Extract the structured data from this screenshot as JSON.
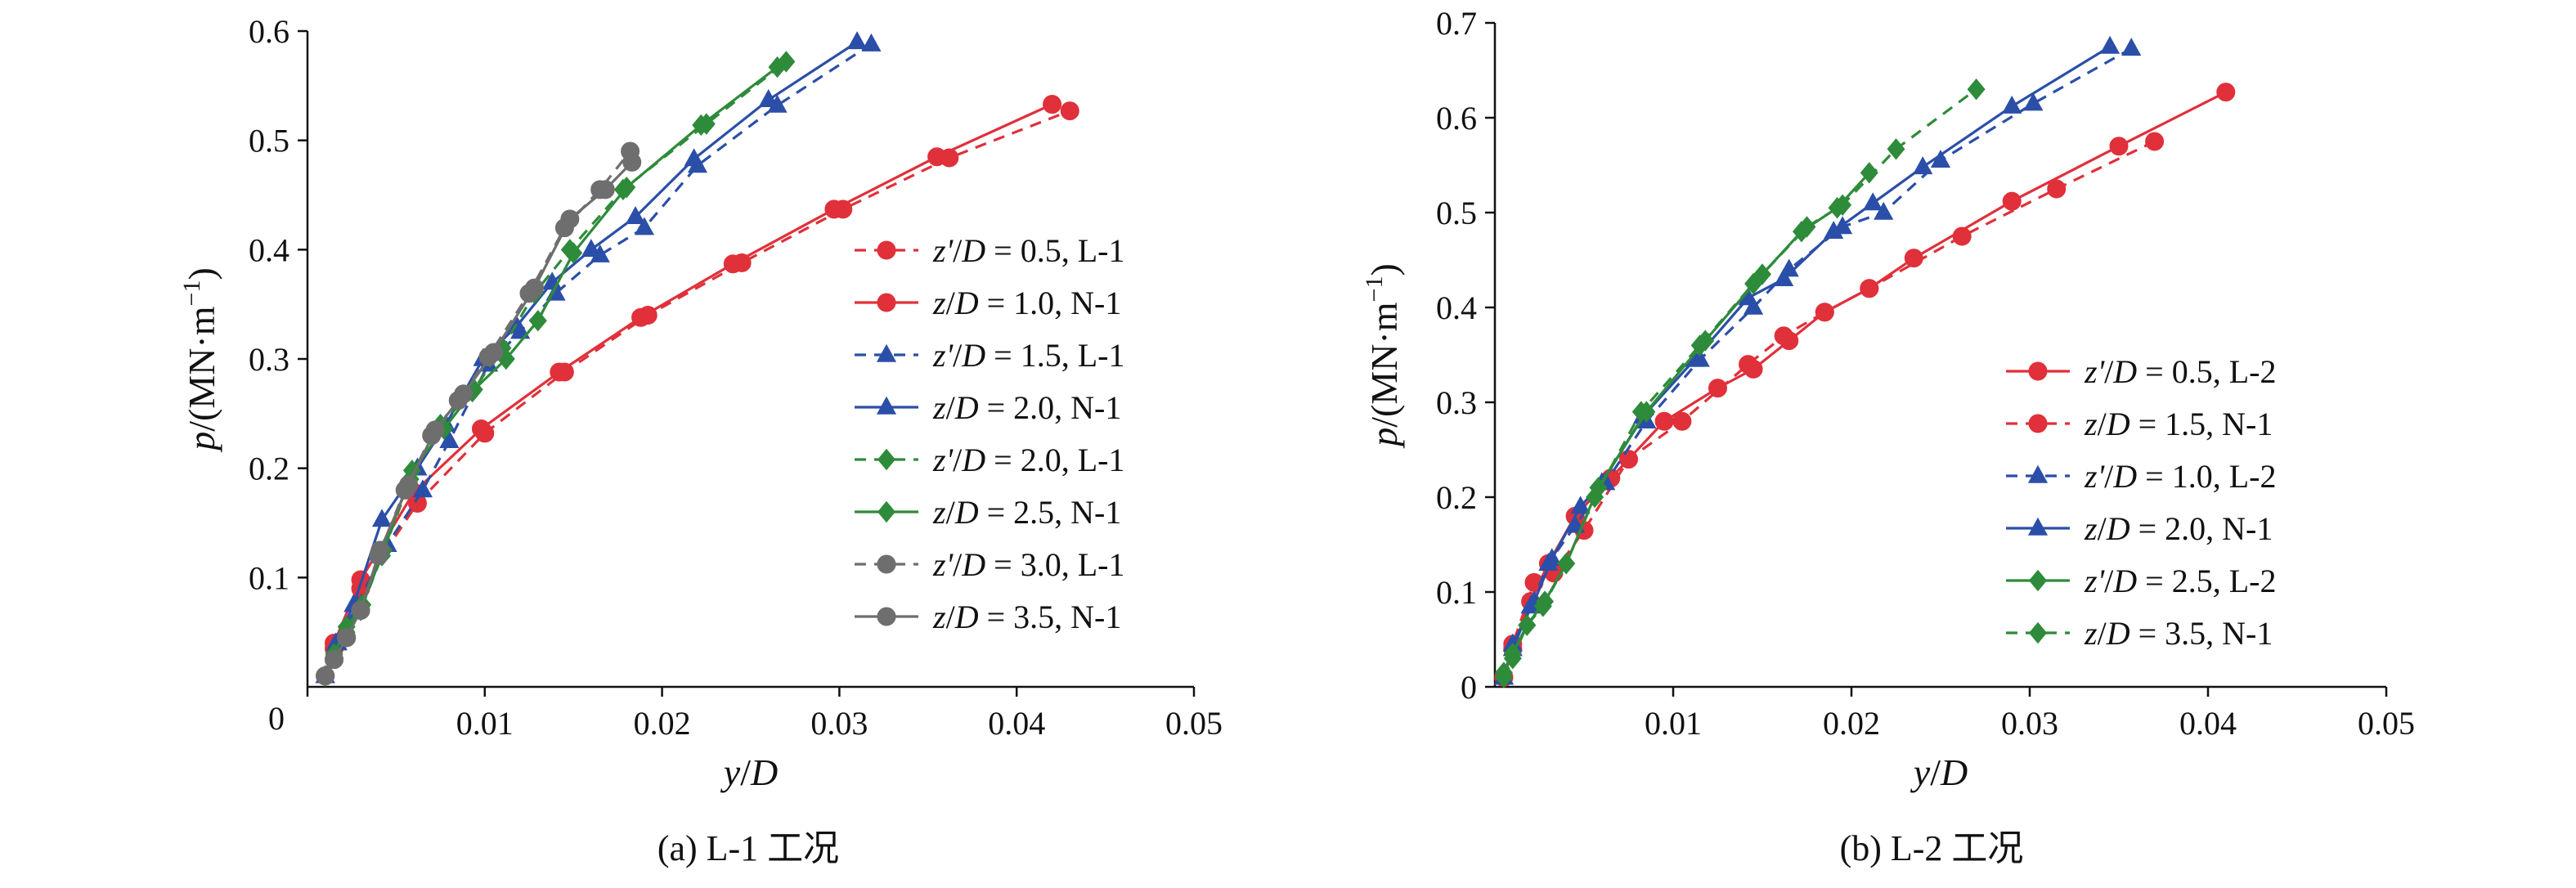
{
  "chart_data": [
    {
      "type": "line",
      "caption": "(a) L-1 工况",
      "xlabel_num": "y",
      "xlabel_den": "D",
      "ylabel_var": "p",
      "ylabel_unit": "(MN·m",
      "ylabel_exp": "−1",
      "ylabel_close": ")",
      "xlim": [
        0,
        0.05
      ],
      "ylim": [
        0,
        0.6
      ],
      "x_ticks": [
        "0",
        "0.01",
        "0.02",
        "0.03",
        "0.04",
        "0.05"
      ],
      "x_tick_values": [
        0,
        0.01,
        0.02,
        0.03,
        0.04,
        0.05
      ],
      "y_ticks": [
        "0.1",
        "0.2",
        "0.3",
        "0.4",
        "0.5",
        "0.6"
      ],
      "y_tick_values": [
        0.1,
        0.2,
        0.3,
        0.4,
        0.5,
        0.6
      ],
      "legend_position": "right",
      "series": [
        {
          "name": "0.5, L-1",
          "var": "z'",
          "color": "#e0303a",
          "dash": true,
          "marker": "circle",
          "x": [
            0.001,
            0.0015,
            0.003,
            0.0062,
            0.01,
            0.0145,
            0.0192,
            0.0245,
            0.0302,
            0.0362,
            0.043
          ],
          "y": [
            0.01,
            0.035,
            0.09,
            0.168,
            0.232,
            0.288,
            0.34,
            0.388,
            0.437,
            0.484,
            0.527
          ]
        },
        {
          "name": "1.0, N-1",
          "var": "z",
          "color": "#e0303a",
          "dash": false,
          "marker": "circle",
          "x": [
            0.001,
            0.0015,
            0.003,
            0.006,
            0.0098,
            0.0142,
            0.0188,
            0.024,
            0.0297,
            0.0355,
            0.042
          ],
          "y": [
            0.01,
            0.04,
            0.098,
            0.178,
            0.236,
            0.288,
            0.338,
            0.387,
            0.437,
            0.485,
            0.533
          ]
        },
        {
          "name": "1.5, L-1",
          "var": "z'",
          "color": "#2b4fa8",
          "dash": true,
          "marker": "triangle",
          "x": [
            0.001,
            0.0017,
            0.0028,
            0.0045,
            0.0065,
            0.008,
            0.0102,
            0.012,
            0.014,
            0.0165,
            0.019,
            0.022,
            0.0265,
            0.0318
          ],
          "y": [
            0.01,
            0.04,
            0.075,
            0.13,
            0.18,
            0.225,
            0.295,
            0.325,
            0.36,
            0.395,
            0.42,
            0.477,
            0.532,
            0.588
          ]
        },
        {
          "name": "2.0, N-1",
          "var": "z",
          "color": "#2b4fa8",
          "dash": false,
          "marker": "triangle",
          "x": [
            0.001,
            0.0016,
            0.0026,
            0.0042,
            0.0062,
            0.0078,
            0.0099,
            0.0118,
            0.0138,
            0.016,
            0.0185,
            0.0218,
            0.026,
            0.031
          ],
          "y": [
            0.01,
            0.04,
            0.075,
            0.153,
            0.2,
            0.24,
            0.3,
            0.33,
            0.37,
            0.4,
            0.43,
            0.483,
            0.537,
            0.59
          ]
        },
        {
          "name": "2.0, L-1",
          "var": "z'",
          "color": "#2e8b3a",
          "dash": true,
          "marker": "diamond",
          "x": [
            0.001,
            0.0015,
            0.0022,
            0.003,
            0.0042,
            0.0058,
            0.0075,
            0.0093,
            0.011,
            0.0128,
            0.0148,
            0.0178,
            0.0225,
            0.027
          ],
          "y": [
            0.01,
            0.03,
            0.05,
            0.07,
            0.12,
            0.19,
            0.24,
            0.27,
            0.31,
            0.36,
            0.4,
            0.455,
            0.515,
            0.572
          ]
        },
        {
          "name": "2.5, N-1",
          "var": "z",
          "color": "#2e8b3a",
          "dash": false,
          "marker": "diamond",
          "x": [
            0.001,
            0.0015,
            0.0022,
            0.0031,
            0.0043,
            0.0059,
            0.0077,
            0.0094,
            0.0112,
            0.013,
            0.015,
            0.018,
            0.0222,
            0.0265
          ],
          "y": [
            0.01,
            0.03,
            0.055,
            0.075,
            0.125,
            0.198,
            0.236,
            0.272,
            0.3,
            0.335,
            0.397,
            0.457,
            0.514,
            0.567
          ]
        },
        {
          "name": "3.0, L-1",
          "var": "z'",
          "color": "#6e6e6e",
          "dash": true,
          "marker": "circle",
          "x": [
            0.001,
            0.0015,
            0.0022,
            0.003,
            0.004,
            0.0055,
            0.007,
            0.0085,
            0.0102,
            0.0125,
            0.0145,
            0.0165,
            0.0182
          ],
          "y": [
            0.01,
            0.025,
            0.045,
            0.07,
            0.12,
            0.18,
            0.23,
            0.262,
            0.302,
            0.36,
            0.42,
            0.455,
            0.49
          ]
        },
        {
          "name": "3.5, N-1",
          "var": "z",
          "color": "#6e6e6e",
          "dash": false,
          "marker": "circle",
          "x": [
            0.001,
            0.0015,
            0.0022,
            0.003,
            0.0041,
            0.0057,
            0.0072,
            0.0088,
            0.0105,
            0.0128,
            0.0148,
            0.0168,
            0.0183
          ],
          "y": [
            0.01,
            0.025,
            0.045,
            0.07,
            0.125,
            0.185,
            0.235,
            0.268,
            0.306,
            0.365,
            0.428,
            0.455,
            0.48
          ]
        }
      ]
    },
    {
      "type": "line",
      "caption": "(b) L-2 工况",
      "xlabel_num": "y",
      "xlabel_den": "D",
      "ylabel_var": "p",
      "ylabel_unit": "(MN·m",
      "ylabel_exp": "−1",
      "ylabel_close": ")",
      "xlim": [
        0,
        0.05
      ],
      "ylim": [
        0,
        0.7
      ],
      "x_ticks": [
        "0.01",
        "0.02",
        "0.03",
        "0.04",
        "0.05"
      ],
      "x_tick_values": [
        0.01,
        0.02,
        0.03,
        0.04,
        0.05
      ],
      "y_ticks": [
        "0",
        "0.1",
        "0.2",
        "0.3",
        "0.4",
        "0.5",
        "0.6",
        "0.7"
      ],
      "y_tick_values": [
        0,
        0.1,
        0.2,
        0.3,
        0.4,
        0.5,
        0.6,
        0.7
      ],
      "legend_position": "right",
      "series": [
        {
          "name": "0.5, L-2",
          "var": "z'",
          "color": "#e0303a",
          "dash": false,
          "marker": "circle",
          "x": [
            0.0005,
            0.001,
            0.002,
            0.003,
            0.0045,
            0.0065,
            0.0095,
            0.0125,
            0.0145,
            0.0165,
            0.0185,
            0.021,
            0.0235,
            0.029,
            0.035,
            0.041
          ],
          "y": [
            0.01,
            0.04,
            0.09,
            0.13,
            0.18,
            0.22,
            0.28,
            0.315,
            0.335,
            0.365,
            0.395,
            0.42,
            0.452,
            0.512,
            0.57,
            0.627
          ]
        },
        {
          "name": "1.5, N-1",
          "var": "z",
          "color": "#e0303a",
          "dash": true,
          "marker": "circle",
          "x": [
            0.0005,
            0.001,
            0.0022,
            0.0033,
            0.005,
            0.0075,
            0.0105,
            0.0142,
            0.0162,
            0.0185,
            0.021,
            0.0262,
            0.0315,
            0.037
          ],
          "y": [
            0.01,
            0.045,
            0.11,
            0.12,
            0.165,
            0.24,
            0.28,
            0.34,
            0.37,
            0.395,
            0.42,
            0.475,
            0.525,
            0.575
          ]
        },
        {
          "name": "1.0, L-2",
          "var": "z'",
          "color": "#2b4fa8",
          "dash": true,
          "marker": "triangle",
          "x": [
            0.0005,
            0.001,
            0.002,
            0.003,
            0.0045,
            0.0062,
            0.0085,
            0.0115,
            0.0145,
            0.0165,
            0.0195,
            0.0218,
            0.025,
            0.0302,
            0.0357
          ],
          "y": [
            0.01,
            0.04,
            0.085,
            0.13,
            0.17,
            0.215,
            0.28,
            0.345,
            0.4,
            0.44,
            0.485,
            0.5,
            0.555,
            0.615,
            0.673
          ]
        },
        {
          "name": "2.0, N-1",
          "var": "z",
          "color": "#2b4fa8",
          "dash": false,
          "marker": "triangle",
          "x": [
            0.0005,
            0.001,
            0.0022,
            0.0032,
            0.0048,
            0.006,
            0.0083,
            0.0112,
            0.0142,
            0.0162,
            0.019,
            0.0212,
            0.024,
            0.029,
            0.0345
          ],
          "y": [
            0.01,
            0.045,
            0.09,
            0.135,
            0.19,
            0.215,
            0.285,
            0.345,
            0.41,
            0.43,
            0.48,
            0.51,
            0.548,
            0.612,
            0.675
          ]
        },
        {
          "name": "2.5, L-2",
          "var": "z'",
          "color": "#2e8b3a",
          "dash": false,
          "marker": "diamond",
          "x": [
            0.0005,
            0.001,
            0.0018,
            0.0028,
            0.004,
            0.0058,
            0.0085,
            0.0118,
            0.015,
            0.0172,
            0.0192,
            0.021
          ],
          "y": [
            0.015,
            0.035,
            0.065,
            0.09,
            0.13,
            0.21,
            0.29,
            0.365,
            0.435,
            0.48,
            0.505,
            0.542
          ]
        },
        {
          "name": "3.5, N-1",
          "var": "z",
          "color": "#2e8b3a",
          "dash": true,
          "marker": "diamond",
          "x": [
            0.0005,
            0.001,
            0.0018,
            0.0027,
            0.004,
            0.0056,
            0.0082,
            0.0115,
            0.0145,
            0.0175,
            0.0195,
            0.0225,
            0.027
          ],
          "y": [
            0.01,
            0.03,
            0.065,
            0.085,
            0.13,
            0.2,
            0.29,
            0.36,
            0.425,
            0.485,
            0.508,
            0.567,
            0.63
          ]
        }
      ]
    }
  ]
}
